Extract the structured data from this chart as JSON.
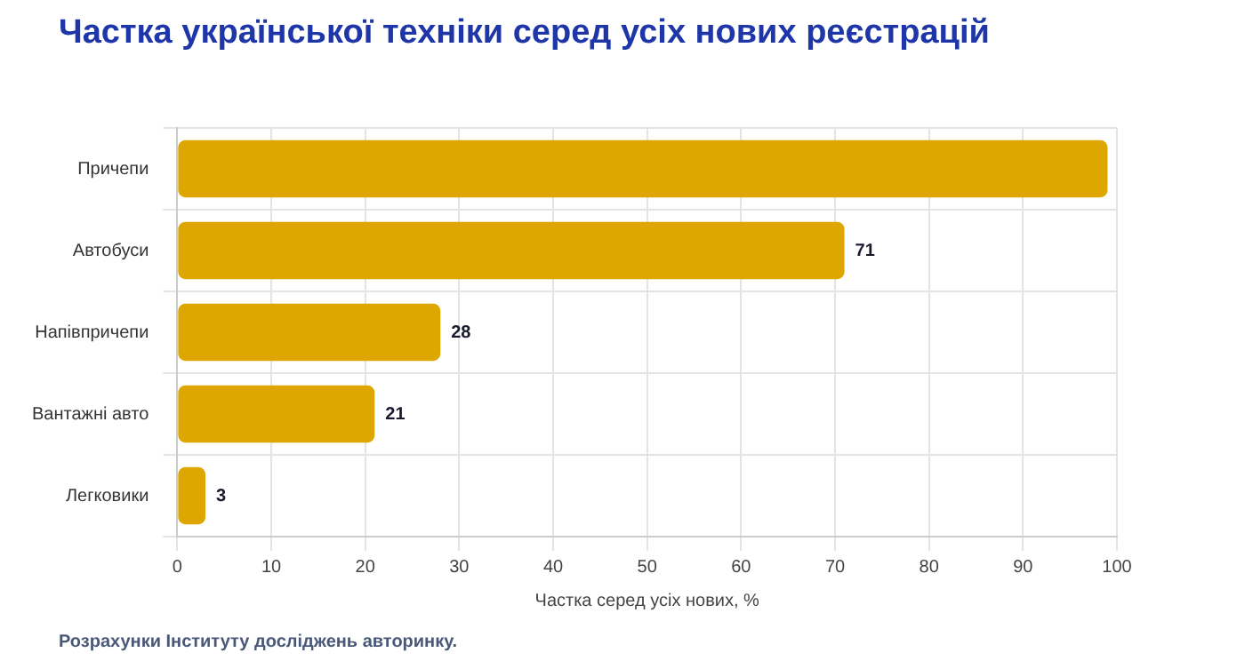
{
  "chart_data": {
    "type": "bar",
    "orientation": "horizontal",
    "title": "Частка української техніки серед усіх нових реєстрацій",
    "categories": [
      "Причепи",
      "Автобуси",
      "Напівпричепи",
      "Вантажні авто",
      "Легковики"
    ],
    "values": [
      99,
      71,
      28,
      21,
      3
    ],
    "value_labels": [
      null,
      "71",
      "28",
      "21",
      "3"
    ],
    "color": "#dea600",
    "xlabel": "Частка серед усіх нових, %",
    "xlim": [
      0,
      100
    ],
    "xticks": [
      0,
      10,
      20,
      30,
      40,
      50,
      60,
      70,
      80,
      90,
      100
    ],
    "grid": true,
    "legend": false,
    "annotations": [
      "Розрахунки Інституту досліджень авторинку."
    ]
  }
}
